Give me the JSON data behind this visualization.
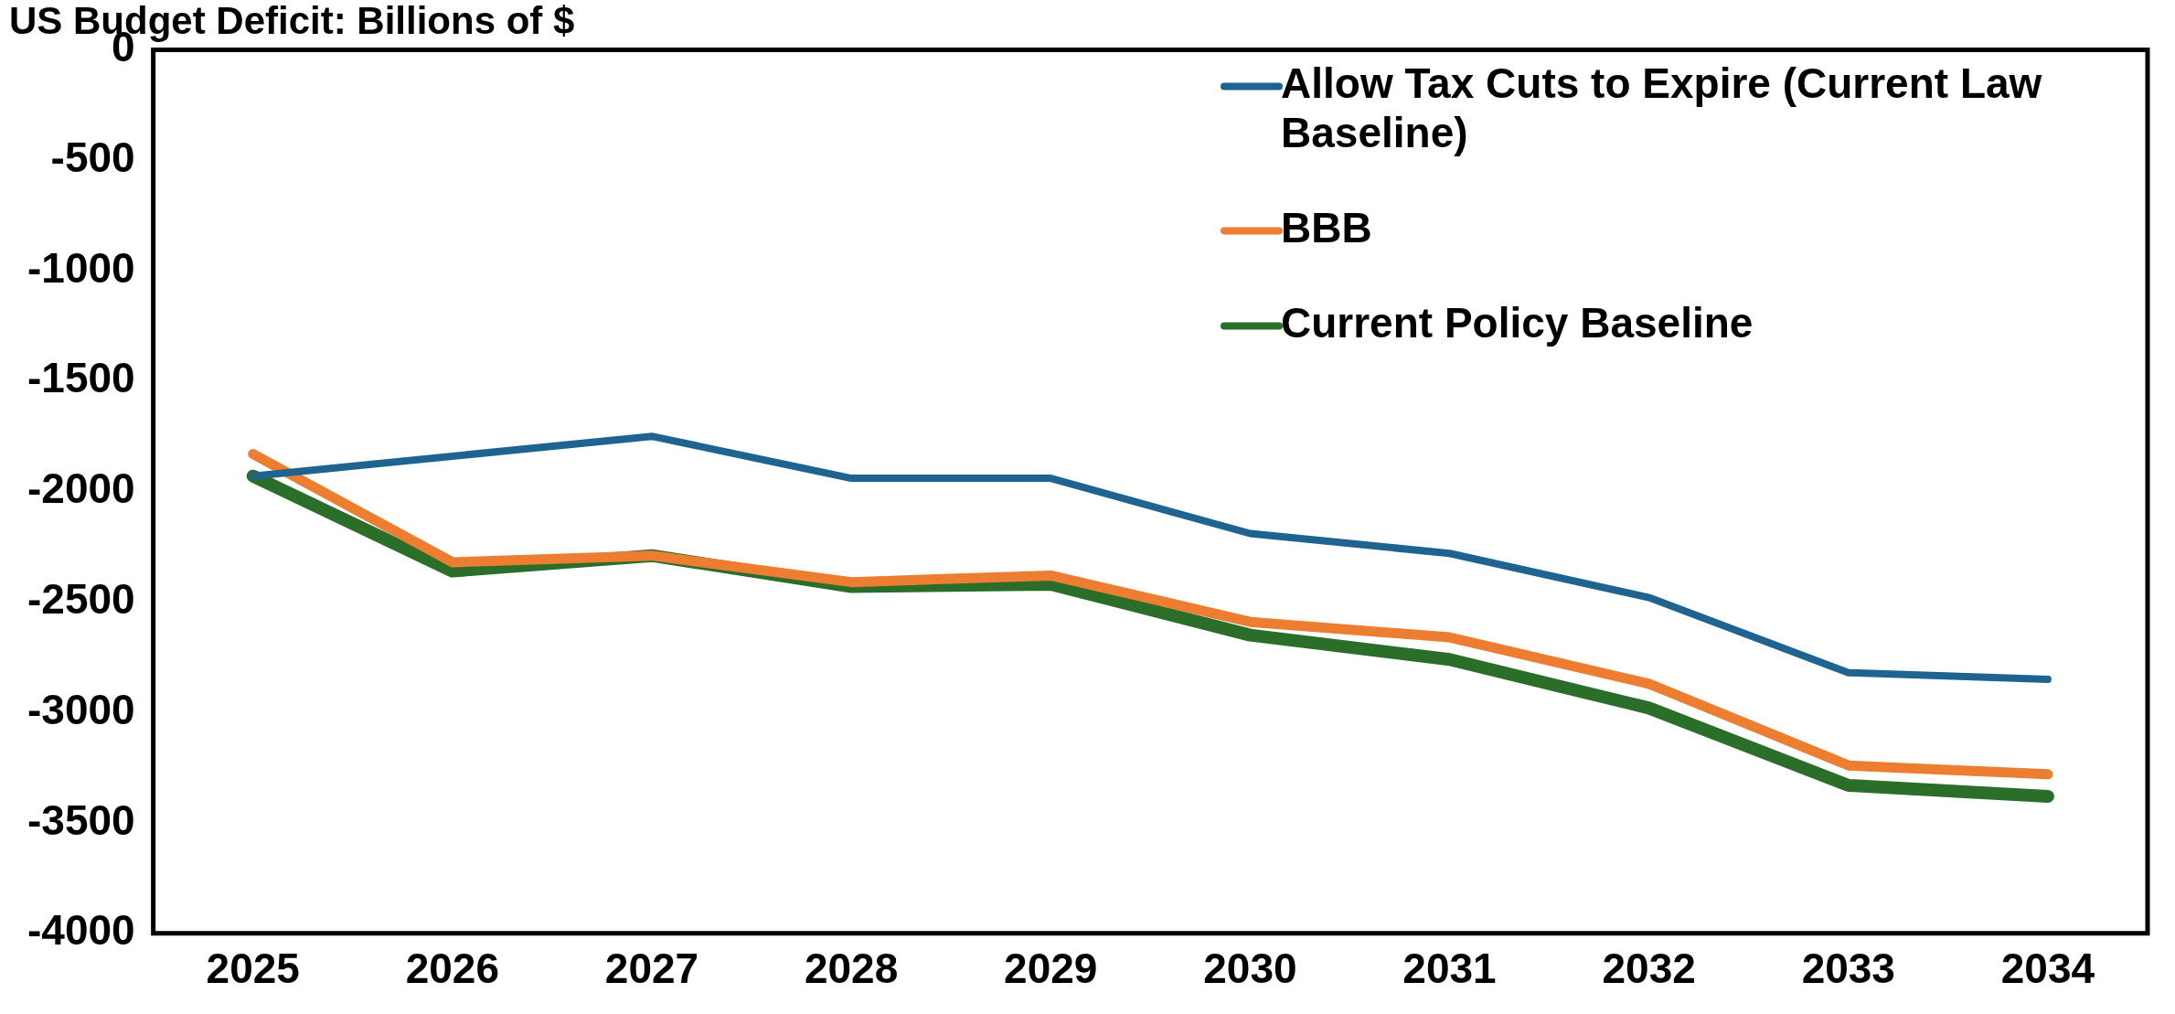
{
  "chart_data": {
    "type": "line",
    "title": "US Budget Deficit: Billions of $",
    "categories": [
      "2025",
      "2026",
      "2027",
      "2028",
      "2029",
      "2030",
      "2031",
      "2032",
      "2033",
      "2034"
    ],
    "series": [
      {
        "name": "Allow Tax Cuts to Expire (Current Law Baseline)",
        "color": "#1f6391",
        "values": [
          -1930,
          -1840,
          -1750,
          -1940,
          -1940,
          -2190,
          -2280,
          -2480,
          -2820,
          -2850
        ]
      },
      {
        "name": "BBB",
        "color": "#ed7d31",
        "values": [
          -1830,
          -2320,
          -2290,
          -2410,
          -2380,
          -2590,
          -2660,
          -2870,
          -3240,
          -3280
        ]
      },
      {
        "name": "Current Policy Baseline",
        "color": "#2a6e2a",
        "values": [
          -1930,
          -2360,
          -2290,
          -2430,
          -2420,
          -2650,
          -2760,
          -2980,
          -3330,
          -3380
        ]
      }
    ],
    "ylim": [
      -4000,
      0
    ],
    "yticks": [
      -4000,
      -3500,
      -3000,
      -2500,
      -2000,
      -1500,
      -1000,
      -500,
      0
    ],
    "grid": false,
    "legend": "top right",
    "marker": "none",
    "line_style": "solid"
  }
}
